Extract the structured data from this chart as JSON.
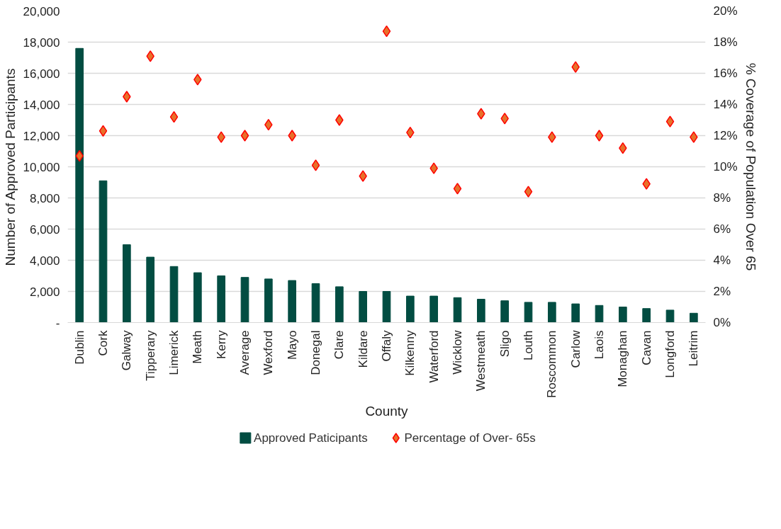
{
  "chart_data": {
    "type": "bar",
    "xlabel": "County",
    "ylabel": "Number of Approved Participants",
    "y2label": "% Coverage of Population Over 65",
    "categories": [
      "Dublin",
      "Cork",
      "Galway",
      "Tipperary",
      "Limerick",
      "Meath",
      "Kerry",
      "Average",
      "Wexford",
      "Mayo",
      "Donegal",
      "Clare",
      "Kildare",
      "Offaly",
      "Kilkenny",
      "Waterford",
      "Wicklow",
      "Westmeath",
      "Sligo",
      "Louth",
      "Roscommon",
      "Carlow",
      "Laois",
      "Monaghan",
      "Cavan",
      "Longford",
      "Leitrim"
    ],
    "series": [
      {
        "name": "Approved Paticipants",
        "color": "#024d42",
        "values": [
          17600,
          9100,
          5000,
          4200,
          3600,
          3200,
          3000,
          2900,
          2800,
          2700,
          2500,
          2300,
          2000,
          2000,
          1700,
          1700,
          1600,
          1500,
          1400,
          1300,
          1300,
          1200,
          1100,
          1000,
          900,
          800,
          600
        ]
      },
      {
        "name": "Percentage of Over- 65s",
        "type": "scatter",
        "axis": "y2",
        "marker": "diamond",
        "color": "#e8702a",
        "values": [
          10.7,
          12.3,
          14.5,
          17.1,
          13.2,
          15.6,
          11.9,
          12.0,
          12.7,
          12.0,
          10.1,
          13.0,
          9.4,
          18.7,
          12.2,
          9.9,
          8.6,
          13.4,
          13.1,
          8.4,
          11.9,
          16.4,
          12.0,
          11.2,
          8.9,
          12.9,
          11.9
        ]
      }
    ],
    "ylim": [
      0,
      20000
    ],
    "yticks": [
      {
        "value": 0,
        "label": "-"
      },
      {
        "value": 2000,
        "label": "2,000"
      },
      {
        "value": 4000,
        "label": "4,000"
      },
      {
        "value": 6000,
        "label": "6,000"
      },
      {
        "value": 8000,
        "label": "8,000"
      },
      {
        "value": 10000,
        "label": "10,000"
      },
      {
        "value": 12000,
        "label": "12,000"
      },
      {
        "value": 14000,
        "label": "14,000"
      },
      {
        "value": 16000,
        "label": "16,000"
      },
      {
        "value": 18000,
        "label": "18,000"
      },
      {
        "value": 20000,
        "label": "20,000"
      }
    ],
    "y2lim": [
      0,
      20
    ],
    "y2ticks": [
      {
        "value": 0,
        "label": "0%"
      },
      {
        "value": 2,
        "label": "2%"
      },
      {
        "value": 4,
        "label": "4%"
      },
      {
        "value": 6,
        "label": "6%"
      },
      {
        "value": 8,
        "label": "8%"
      },
      {
        "value": 10,
        "label": "10%"
      },
      {
        "value": 12,
        "label": "12%"
      },
      {
        "value": 14,
        "label": "14%"
      },
      {
        "value": 16,
        "label": "16%"
      },
      {
        "value": 18,
        "label": "18%"
      },
      {
        "value": 20,
        "label": "20%"
      }
    ],
    "grid": "y",
    "legend": "bottom"
  }
}
